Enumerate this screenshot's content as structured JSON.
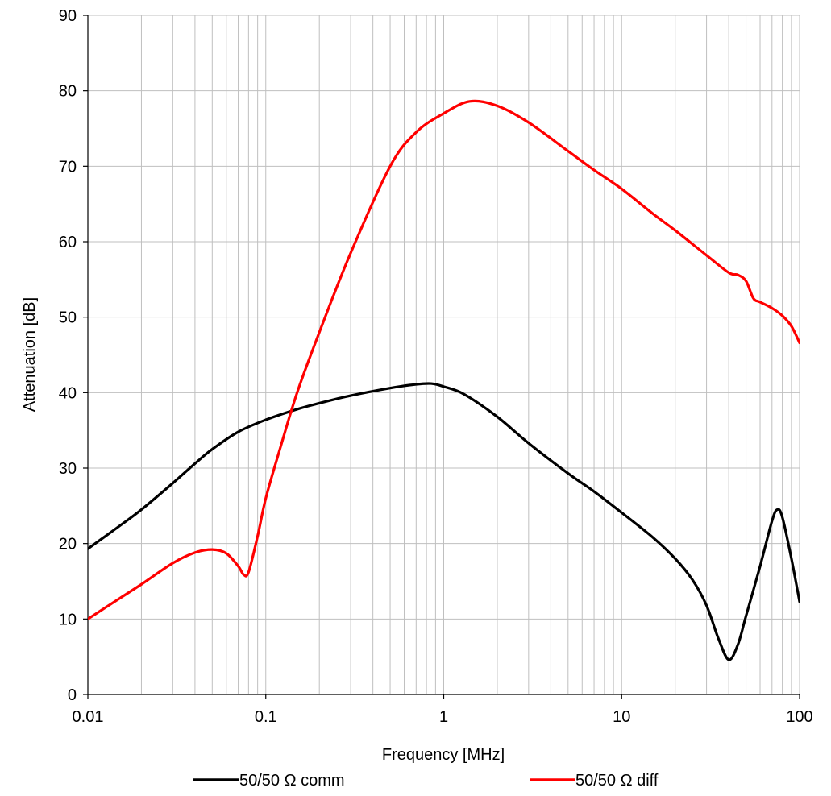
{
  "chart_data": {
    "type": "line",
    "xlabel": "Frequency [MHz]",
    "ylabel": "Attenuation [dB]",
    "x_scale": "log",
    "xlim": [
      0.01,
      100
    ],
    "ylim": [
      0,
      90
    ],
    "x_ticks": [
      0.01,
      0.1,
      1,
      10,
      100
    ],
    "x_tick_labels": [
      "0.01",
      "0.1",
      "1",
      "10",
      "100"
    ],
    "y_ticks": [
      0,
      10,
      20,
      30,
      40,
      50,
      60,
      70,
      80,
      90
    ],
    "y_tick_labels": [
      "0",
      "10",
      "20",
      "30",
      "40",
      "50",
      "60",
      "70",
      "80",
      "90"
    ],
    "grid": true,
    "legend_position": "bottom",
    "series": [
      {
        "name": "50/50 Ω comm",
        "color": "#000000",
        "x": [
          0.01,
          0.015,
          0.02,
          0.03,
          0.04,
          0.05,
          0.07,
          0.1,
          0.15,
          0.2,
          0.3,
          0.5,
          0.7,
          0.85,
          1,
          1.3,
          2,
          3,
          5,
          7,
          10,
          15,
          20,
          25,
          30,
          35,
          40,
          45,
          50,
          60,
          70,
          75,
          80,
          90,
          100
        ],
        "values": [
          19.3,
          22.3,
          24.5,
          28.0,
          30.6,
          32.5,
          34.8,
          36.4,
          37.8,
          38.6,
          39.6,
          40.6,
          41.1,
          41.2,
          40.8,
          39.8,
          36.8,
          33.3,
          29.3,
          26.9,
          24.1,
          20.8,
          18.0,
          15.2,
          11.8,
          7.4,
          4.6,
          6.6,
          10.4,
          17.0,
          23.0,
          24.5,
          23.5,
          18.0,
          12.3
        ]
      },
      {
        "name": "50/50 Ω diff",
        "color": "#ff0000",
        "x": [
          0.01,
          0.015,
          0.02,
          0.03,
          0.04,
          0.05,
          0.06,
          0.07,
          0.075,
          0.08,
          0.09,
          0.1,
          0.12,
          0.15,
          0.2,
          0.3,
          0.5,
          0.7,
          1,
          1.4,
          2,
          3,
          5,
          7,
          10,
          15,
          20,
          30,
          40,
          45,
          50,
          55,
          60,
          70,
          80,
          90,
          100
        ],
        "values": [
          10.0,
          12.7,
          14.6,
          17.4,
          18.8,
          19.2,
          18.7,
          17.0,
          15.9,
          16.2,
          21.0,
          26.0,
          32.5,
          40.0,
          48.0,
          58.5,
          70.0,
          74.5,
          77.0,
          78.6,
          78.0,
          75.8,
          72.0,
          69.5,
          67.0,
          63.7,
          61.5,
          58.2,
          55.9,
          55.6,
          54.8,
          52.5,
          52.0,
          51.2,
          50.2,
          48.8,
          46.6
        ]
      }
    ]
  }
}
